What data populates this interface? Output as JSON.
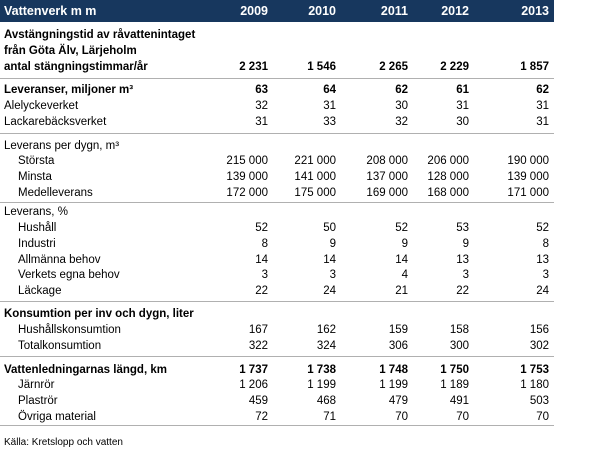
{
  "table": {
    "header": {
      "label": "Vattenverk m m",
      "years": [
        "2009",
        "2010",
        "2011",
        "2012",
        "2013"
      ]
    },
    "rows": [
      {
        "label": "Avstängningstid av råvattenintaget"
      },
      {
        "label": "från Göta Älv, Lärjeholm"
      },
      {
        "label": "antal stängningstimmar/år",
        "values": [
          "2 231",
          "1 546",
          "2 265",
          "2 229",
          "1 857"
        ]
      },
      {
        "label": "Leveranser, miljoner m³",
        "values": [
          "63",
          "64",
          "62",
          "61",
          "62"
        ]
      },
      {
        "label": "Alelyckeverket",
        "values": [
          "32",
          "31",
          "30",
          "31",
          "31"
        ]
      },
      {
        "label": "Lackarebäcksverket",
        "values": [
          "31",
          "33",
          "32",
          "30",
          "31"
        ]
      },
      {
        "label": "Leverans per dygn, m³"
      },
      {
        "label": "Största",
        "values": [
          "215 000",
          "221 000",
          "208 000",
          "206 000",
          "190 000"
        ]
      },
      {
        "label": "Minsta",
        "values": [
          "139 000",
          "141 000",
          "137 000",
          "128 000",
          "139 000"
        ]
      },
      {
        "label": "Medelleverans",
        "values": [
          "172 000",
          "175 000",
          "169 000",
          "168 000",
          "171 000"
        ]
      },
      {
        "label": "Leverans, %"
      },
      {
        "label": "Hushåll",
        "values": [
          "52",
          "50",
          "52",
          "53",
          "52"
        ]
      },
      {
        "label": "Industri",
        "values": [
          "8",
          "9",
          "9",
          "9",
          "8"
        ]
      },
      {
        "label": "Allmänna behov",
        "values": [
          "14",
          "14",
          "14",
          "13",
          "13"
        ]
      },
      {
        "label": "Verkets egna behov",
        "values": [
          "3",
          "3",
          "4",
          "3",
          "3"
        ]
      },
      {
        "label": "Läckage",
        "values": [
          "22",
          "24",
          "21",
          "22",
          "24"
        ]
      },
      {
        "label": "Konsumtion per inv och dygn, liter"
      },
      {
        "label": "Hushållskonsumtion",
        "values": [
          "167",
          "162",
          "159",
          "158",
          "156"
        ]
      },
      {
        "label": "Totalkonsumtion",
        "values": [
          "322",
          "324",
          "306",
          "300",
          "302"
        ]
      },
      {
        "label": "Vattenledningarnas längd, km",
        "values": [
          "1 737",
          "1 738",
          "1 748",
          "1 750",
          "1 753"
        ]
      },
      {
        "label": "Järnrör",
        "values": [
          "1 206",
          "1 199",
          "1 199",
          "1 189",
          "1 180"
        ]
      },
      {
        "label": "Plaströr",
        "values": [
          "459",
          "468",
          "479",
          "491",
          "503"
        ]
      },
      {
        "label": "Övriga material",
        "values": [
          "72",
          "71",
          "70",
          "70",
          "70"
        ]
      }
    ]
  },
  "source": "Källa:  Kretslopp och vatten"
}
